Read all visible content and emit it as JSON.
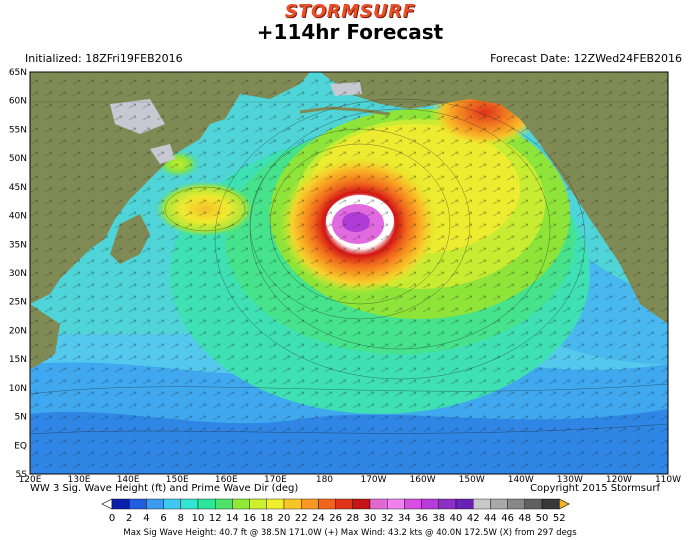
{
  "header": {
    "brand": "STORMSURF",
    "title": "+114hr Forecast",
    "initialized": "Initialized: 18ZFri19FEB2016",
    "forecast_date": "Forecast Date: 12ZWed24FEB2016"
  },
  "axes": {
    "lat_labels": [
      "65N",
      "60N",
      "55N",
      "50N",
      "45N",
      "40N",
      "35N",
      "30N",
      "25N",
      "20N",
      "15N",
      "10N",
      "5N",
      "EQ",
      "5S"
    ],
    "lon_labels": [
      "120E",
      "130E",
      "140E",
      "150E",
      "160E",
      "170E",
      "180",
      "170W",
      "160W",
      "150W",
      "140W",
      "130W",
      "120W",
      "110W"
    ]
  },
  "footer": {
    "caption": "WW 3 Sig. Wave Height (ft) and Prime Wave Dir (deg)",
    "copyright": "Copyright 2015 Stormsurf",
    "stats": "Max Sig Wave Height: 40.7 ft @ 38.5N 171.0W (+)   Max Wind: 43.2 kts @ 40.0N 172.5W (X) from 297 degs"
  },
  "legend": {
    "labels": [
      "0",
      "2",
      "4",
      "6",
      "8",
      "10",
      "12",
      "14",
      "16",
      "18",
      "20",
      "22",
      "24",
      "26",
      "28",
      "30",
      "32",
      "34",
      "36",
      "38",
      "40",
      "42",
      "44",
      "46",
      "48",
      "50",
      "52"
    ],
    "colors": [
      "#ffffff",
      "#0b1fa8",
      "#1f5fe0",
      "#3a9bf0",
      "#3fc9ee",
      "#33e4d0",
      "#2fe39a",
      "#4de36a",
      "#8fe83a",
      "#cdef2e",
      "#f2ee30",
      "#f7c528",
      "#f89a22",
      "#f0641c",
      "#e0341a",
      "#c81414",
      "#e06ad0",
      "#f082ec",
      "#d94ee2",
      "#b43cd8",
      "#8c2fc6",
      "#6a23b0",
      "#c8c8c8",
      "#a8a8a8",
      "#888888",
      "#606060",
      "#383838",
      "#f6b31e"
    ]
  },
  "colors": {
    "land": "#7f8a54",
    "ocean_base": "#5fd8c8",
    "brand": "#e8502a"
  }
}
